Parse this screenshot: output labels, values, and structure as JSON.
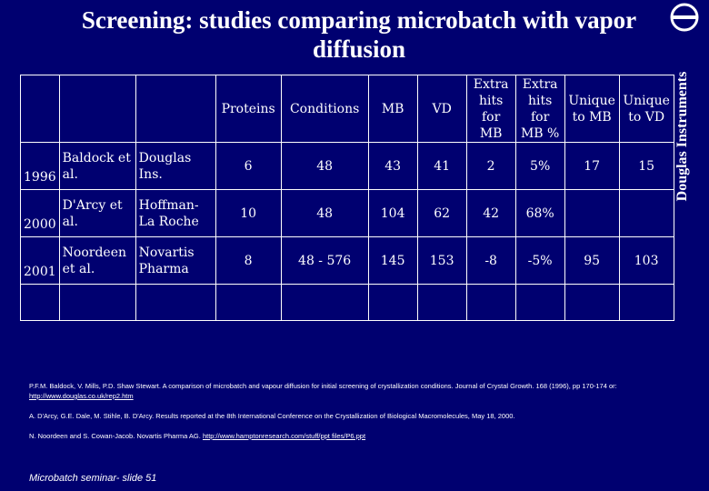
{
  "title": "Screening: studies comparing microbatch with vapor diffusion",
  "brand": {
    "name": "Douglas Instruments",
    "logo_icon": "circle-bar-logo-icon"
  },
  "table": {
    "headers": [
      "Proteins",
      "Conditions",
      "MB",
      "VD",
      "Extra hits for MB",
      "Extra hits for MB %",
      "Unique to MB",
      "Unique to VD"
    ],
    "rows": [
      {
        "year": "1996",
        "author": "Baldock et al.",
        "org": "Douglas Ins.",
        "values": [
          "6",
          "48",
          "43",
          "41",
          "2",
          "5%",
          "17",
          "15"
        ]
      },
      {
        "year": "2000",
        "author": "D'Arcy et al.",
        "org": "Hoffman-La Roche",
        "values": [
          "10",
          "48",
          "104",
          "62",
          "42",
          "68%",
          "",
          ""
        ]
      },
      {
        "year": "2001",
        "author": "Noordeen et al.",
        "org": "Novartis Pharma",
        "values": [
          "8",
          "48 - 576",
          "145",
          "153",
          "-8",
          "-5%",
          "95",
          "103"
        ]
      }
    ]
  },
  "references": [
    {
      "text": "P.F.M. Baldock, V. Mills, P.D. Shaw Stewart. A comparison of microbatch and vapour diffusion for initial screening of crystallization conditions. Journal of Crystal Growth. 168 (1996), pp 170-174 or: ",
      "link": "http://www.douglas.co.uk/rep2.htm"
    },
    {
      "text": "A. D'Arcy, G.E. Dale, M. Stihle, B. D'Arcy.  Results reported at the 8th International Conference on the Crystallization of Biological Macromolecules, May 18, 2000.",
      "link": ""
    },
    {
      "text": "N. Noordeen and S. Cowan-Jacob.  Novartis Pharma AG. ",
      "link": "http://www.hamptonresearch.com/stuff/ppt files/P6.ppt"
    }
  ],
  "footer": "Microbatch seminar- slide 51"
}
